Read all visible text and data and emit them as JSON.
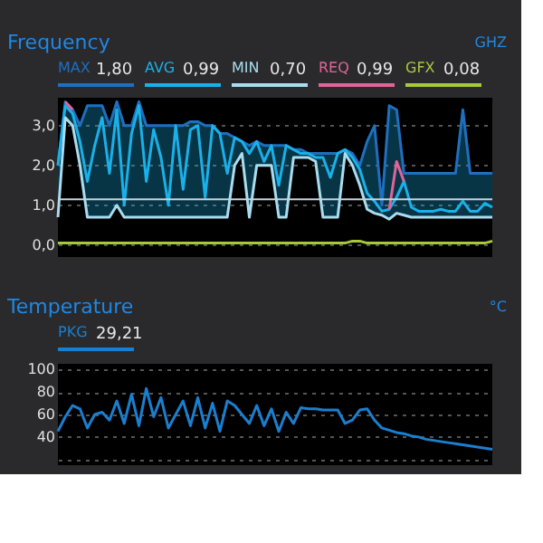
{
  "chart_data": [
    {
      "type": "line",
      "title": "Frequency",
      "ylabel": "GHZ",
      "categories": [
        null,
        null,
        null,
        null,
        null,
        null,
        null,
        null,
        null,
        null,
        null,
        null,
        null,
        null,
        null,
        null,
        null,
        null,
        null,
        null,
        null,
        null,
        null,
        null,
        null,
        null,
        null,
        null,
        null,
        null,
        null,
        null,
        null,
        null,
        null,
        null,
        null,
        null,
        null,
        null,
        null,
        null,
        null,
        null,
        null,
        null,
        null,
        null,
        null,
        null,
        null,
        null,
        null,
        null,
        null,
        null,
        null,
        null,
        null,
        null
      ],
      "ylim": [
        -0.3,
        3.7
      ],
      "yticks": [
        {
          "value": 0,
          "label": "0,0"
        },
        {
          "value": 1,
          "label": "1,0"
        },
        {
          "value": 2,
          "label": "2,0"
        },
        {
          "value": 3,
          "label": "3,0"
        }
      ],
      "grid": "y",
      "legend": "top left",
      "annotations": [
        "1,80",
        "0,99",
        "0,70",
        "0,99",
        "0,08"
      ],
      "ref_lines": [
        {
          "axis": "y",
          "value": 1.15,
          "color": "#c5d3da"
        }
      ],
      "series": [
        {
          "name": "MAX",
          "color": "#1f6fbf",
          "values": [
            2.0,
            3.6,
            3.4,
            3.0,
            3.5,
            3.5,
            3.5,
            3.0,
            3.6,
            3.0,
            3.0,
            3.6,
            3.0,
            3.0,
            3.0,
            3.0,
            3.0,
            3.0,
            3.1,
            3.1,
            3.0,
            3.0,
            2.8,
            2.8,
            2.7,
            2.6,
            2.5,
            2.6,
            2.5,
            2.5,
            2.5,
            2.5,
            2.4,
            2.4,
            2.3,
            2.3,
            2.3,
            2.3,
            2.3,
            2.4,
            2.3,
            2.0,
            2.6,
            3.0,
            1.0,
            3.5,
            3.4,
            1.8,
            1.8,
            1.8,
            1.8,
            1.8,
            1.8,
            1.8,
            1.8,
            3.4,
            1.8,
            1.8,
            1.8,
            1.8
          ]
        },
        {
          "name": "AVG",
          "color": "#1ab0e8",
          "values": [
            2.0,
            3.5,
            3.3,
            2.6,
            1.6,
            2.5,
            3.2,
            1.8,
            3.4,
            1.0,
            2.8,
            3.5,
            1.6,
            2.9,
            2.2,
            1.0,
            3.0,
            1.4,
            2.9,
            3.0,
            1.2,
            3.0,
            2.8,
            1.8,
            2.7,
            2.6,
            2.3,
            2.6,
            2.1,
            2.5,
            1.5,
            2.5,
            2.4,
            2.3,
            2.3,
            2.2,
            2.2,
            1.7,
            2.3,
            2.4,
            2.2,
            1.9,
            1.3,
            1.1,
            0.85,
            0.9,
            1.2,
            1.6,
            0.95,
            0.85,
            0.85,
            0.85,
            0.9,
            0.85,
            0.85,
            1.1,
            0.85,
            0.85,
            1.05,
            0.95
          ],
          "lower": [
            0.7,
            3.2,
            3.0,
            2.0,
            0.7,
            0.7,
            0.7,
            0.7,
            1.0,
            0.7,
            0.7,
            0.7,
            0.7,
            0.7,
            0.7,
            0.7,
            0.7,
            0.7,
            0.7,
            0.7,
            0.7,
            0.7,
            0.7,
            0.7,
            2.0,
            2.3,
            0.7,
            2.0,
            2.0,
            2.0,
            0.7,
            0.7,
            2.2,
            2.2,
            2.2,
            2.1,
            0.7,
            0.7,
            0.7,
            2.3,
            2.0,
            1.5,
            0.9,
            0.8,
            0.75,
            0.65,
            0.8,
            0.75,
            0.7,
            0.7,
            0.7,
            0.7,
            0.7,
            0.7,
            0.7,
            0.7,
            0.7,
            0.7,
            0.7,
            0.7
          ],
          "upper": [
            2.0,
            3.6,
            3.4,
            3.0,
            3.5,
            3.5,
            3.5,
            3.0,
            3.6,
            3.0,
            3.0,
            3.6,
            3.0,
            3.0,
            3.0,
            3.0,
            3.0,
            3.0,
            3.1,
            3.1,
            3.0,
            3.0,
            2.8,
            2.8,
            2.7,
            2.6,
            2.5,
            2.6,
            2.5,
            2.5,
            2.5,
            2.5,
            2.4,
            2.4,
            2.3,
            2.3,
            2.3,
            2.3,
            2.3,
            2.4,
            2.3,
            2.0,
            2.6,
            3.0,
            1.0,
            3.5,
            3.4,
            1.8,
            1.8,
            1.8,
            1.8,
            1.8,
            1.8,
            1.8,
            1.8,
            3.4,
            1.8,
            1.8,
            1.8,
            1.8
          ]
        },
        {
          "name": "MIN",
          "color": "#a9dcef",
          "values": [
            0.7,
            3.2,
            3.0,
            2.0,
            0.7,
            0.7,
            0.7,
            0.7,
            1.0,
            0.7,
            0.7,
            0.7,
            0.7,
            0.7,
            0.7,
            0.7,
            0.7,
            0.7,
            0.7,
            0.7,
            0.7,
            0.7,
            0.7,
            0.7,
            2.0,
            2.3,
            0.7,
            2.0,
            2.0,
            2.0,
            0.7,
            0.7,
            2.2,
            2.2,
            2.2,
            2.1,
            0.7,
            0.7,
            0.7,
            2.3,
            2.0,
            1.5,
            0.9,
            0.8,
            0.75,
            0.65,
            0.8,
            0.75,
            0.7,
            0.7,
            0.7,
            0.7,
            0.7,
            0.7,
            0.7,
            0.7,
            0.7,
            0.7,
            0.7,
            0.7
          ]
        },
        {
          "name": "REQ",
          "color": "#e0649a",
          "values": [
            null,
            3.6,
            3.4,
            null,
            null,
            null,
            null,
            null,
            null,
            null,
            null,
            null,
            null,
            null,
            null,
            null,
            null,
            null,
            null,
            null,
            null,
            null,
            null,
            null,
            null,
            null,
            null,
            null,
            null,
            null,
            null,
            null,
            null,
            null,
            null,
            null,
            null,
            null,
            null,
            null,
            null,
            null,
            null,
            null,
            null,
            0.9,
            2.1,
            1.6,
            null,
            null,
            null,
            null,
            null,
            null,
            null,
            null,
            null,
            null,
            null,
            null
          ]
        },
        {
          "name": "GFX",
          "color": "#a8c83c",
          "values": [
            0.05,
            0.05,
            0.05,
            0.05,
            0.05,
            0.05,
            0.05,
            0.05,
            0.05,
            0.05,
            0.05,
            0.05,
            0.05,
            0.05,
            0.05,
            0.05,
            0.05,
            0.05,
            0.05,
            0.05,
            0.05,
            0.05,
            0.05,
            0.05,
            0.05,
            0.05,
            0.05,
            0.05,
            0.05,
            0.05,
            0.05,
            0.05,
            0.05,
            0.05,
            0.05,
            0.05,
            0.05,
            0.05,
            0.05,
            0.05,
            0.1,
            0.1,
            0.05,
            0.05,
            0.05,
            0.05,
            0.05,
            0.05,
            0.05,
            0.05,
            0.05,
            0.05,
            0.05,
            0.05,
            0.05,
            0.05,
            0.05,
            0.05,
            0.05,
            0.1
          ]
        }
      ]
    },
    {
      "type": "line",
      "title": "Temperature",
      "ylabel": "°C",
      "categories": [
        null,
        null,
        null,
        null,
        null,
        null,
        null,
        null,
        null,
        null,
        null,
        null,
        null,
        null,
        null,
        null,
        null,
        null,
        null,
        null,
        null,
        null,
        null,
        null,
        null,
        null,
        null,
        null,
        null,
        null,
        null,
        null,
        null,
        null,
        null,
        null,
        null,
        null,
        null,
        null,
        null,
        null,
        null,
        null,
        null,
        null,
        null,
        null,
        null,
        null,
        null,
        null,
        null,
        null,
        null,
        null,
        null,
        null,
        null,
        null
      ],
      "ylim": [
        15,
        105
      ],
      "yticks": [
        {
          "value": 20,
          "label": null
        },
        40,
        60,
        80,
        100
      ],
      "grid": "y",
      "legend": "top left",
      "annotations": [
        "29,21"
      ],
      "series": [
        {
          "name": "PKG",
          "color": "#1a7fd0",
          "values": [
            45,
            58,
            68,
            65,
            48,
            60,
            62,
            55,
            72,
            52,
            78,
            50,
            83,
            58,
            75,
            48,
            60,
            72,
            50,
            75,
            48,
            70,
            45,
            72,
            68,
            60,
            52,
            68,
            50,
            65,
            45,
            62,
            52,
            66,
            65,
            65,
            64,
            64,
            64,
            52,
            55,
            64,
            65,
            55,
            48,
            46,
            44,
            43,
            41,
            40,
            38,
            37,
            36,
            35,
            34,
            33,
            32,
            31,
            30,
            29
          ]
        }
      ]
    }
  ]
}
